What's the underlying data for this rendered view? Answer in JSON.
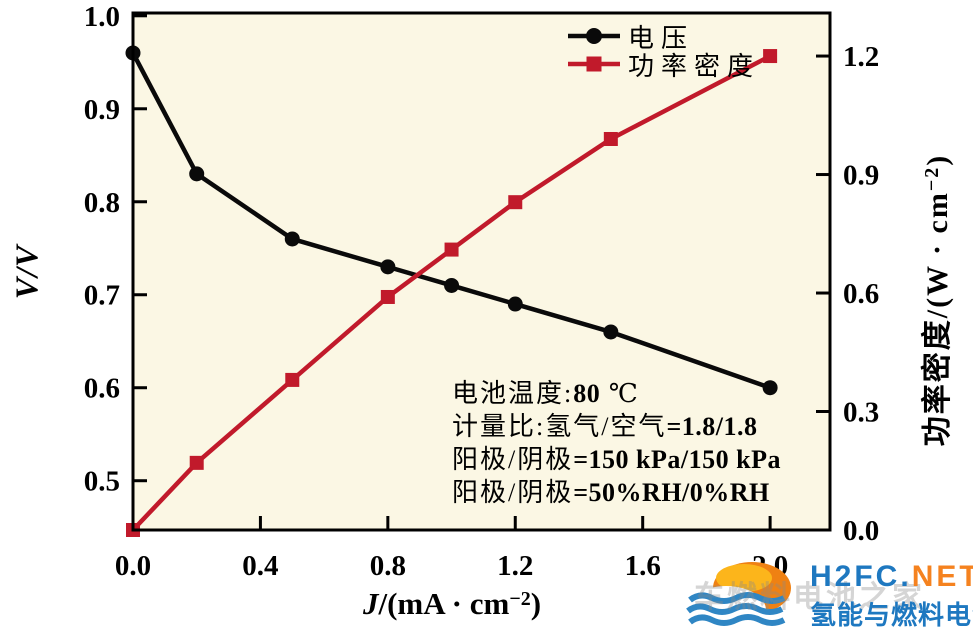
{
  "chart_data": {
    "type": "line",
    "title": "",
    "x": [
      0.0,
      0.2,
      0.5,
      0.8,
      1.0,
      1.2,
      1.5,
      2.0
    ],
    "series": [
      {
        "name": "电压",
        "axis": "left",
        "color": "#0a0a0a",
        "marker": "circle",
        "values": [
          0.96,
          0.83,
          0.76,
          0.73,
          0.71,
          0.69,
          0.66,
          0.6
        ]
      },
      {
        "name": "功率密度",
        "axis": "right",
        "color": "#c11a2b",
        "marker": "square",
        "values": [
          0.0,
          0.17,
          0.38,
          0.59,
          0.71,
          0.83,
          0.99,
          1.2
        ]
      }
    ],
    "xlabel": "J/(mA · cm−2)",
    "xlabel_parts": {
      "var": "J",
      "mid": "/(mA · cm",
      "sup": "−2",
      "end": ")"
    },
    "ylabel_left": "V/V",
    "ylabel_right": "功率密度/(W · cm−2)",
    "ylabel_right_parts": {
      "pre": "功率密度/(W · cm",
      "sup": "−2",
      "end": ")"
    },
    "x_ticks": [
      "0.0",
      "0.4",
      "0.8",
      "1.2",
      "1.6",
      "2.0"
    ],
    "y_left_ticks": [
      "0.5",
      "0.6",
      "0.7",
      "0.8",
      "0.9",
      "1.0"
    ],
    "y_right_ticks": [
      "0.0",
      "0.3",
      "0.6",
      "0.9",
      "1.2"
    ],
    "xlim": [
      0,
      2.188
    ],
    "ylim_left": [
      0.447,
      1.003
    ],
    "ylim_right": [
      0,
      1.309
    ],
    "grid": false,
    "legend_position": "top-center-inside",
    "plot_bg": "#fbf7e4",
    "axis_color": "#000000"
  },
  "annotations": {
    "lines": [
      {
        "prefix": "电池温度:",
        "value": "80",
        "suffix": " ℃"
      },
      {
        "prefix": "计量比:氢气/空气",
        "value": "=1.8/1.8",
        "suffix": ""
      },
      {
        "prefix": "阳极/阴极",
        "value": "=150 kPa/150 kPa",
        "suffix": ""
      },
      {
        "prefix": "阳极/阴极",
        "value": "=50%RH/0%RH",
        "suffix": ""
      }
    ]
  },
  "watermark": {
    "site_name_blue": "H2FC.",
    "site_name_orange": "NET",
    "site_name_cn": "氢能与燃料电池网",
    "ghost_text": "车燃料电池之家",
    "colors": {
      "blue": "#1e78c0",
      "orange": "#f5821f",
      "ghost": "#8a8a8a",
      "sun_orange": "#ef8113",
      "sun_yellow": "#fcb51b",
      "wave_blue": "#2f86c4"
    }
  }
}
